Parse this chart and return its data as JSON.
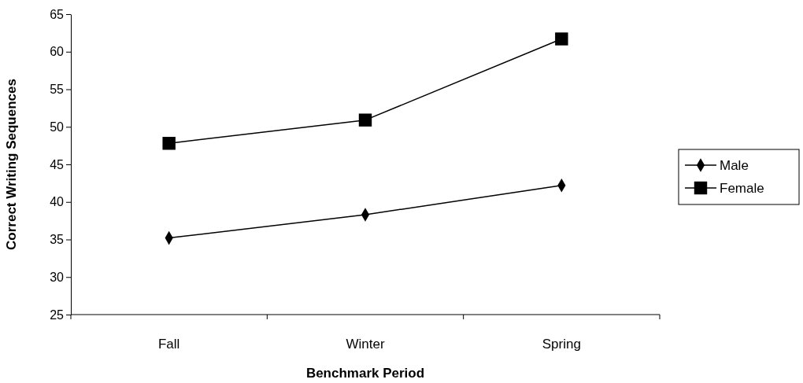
{
  "chart_data": {
    "type": "line",
    "xlabel": "Benchmark Period",
    "ylabel": "Correct Writing Sequences",
    "categories": [
      "Fall",
      "Winter",
      "Spring"
    ],
    "series": [
      {
        "name": "Male",
        "color": "#000000",
        "marker": "diamond",
        "values": [
          35.2,
          38.3,
          42.2
        ]
      },
      {
        "name": "Female",
        "color": "#000000",
        "marker": "square",
        "values": [
          47.8,
          50.9,
          61.7
        ]
      }
    ],
    "ylim": [
      25,
      65
    ],
    "yticks": [
      25,
      30,
      35,
      40,
      45,
      50,
      55,
      60,
      65
    ],
    "grid": false,
    "legend": "right",
    "line_style": "solid"
  }
}
